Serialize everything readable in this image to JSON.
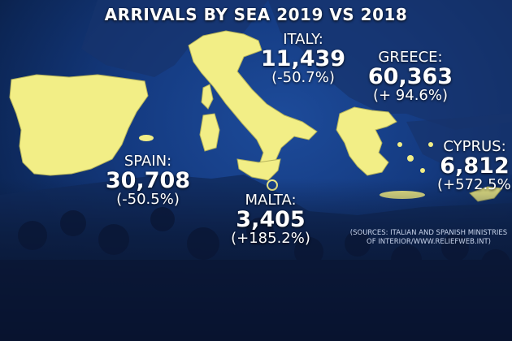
{
  "title": "ARRIVALS BY SEA 2019 VS 2018",
  "colors": {
    "land_highlight": "#f2ee86",
    "sea": "#1a4690",
    "text": "#ffffff"
  },
  "countries": {
    "italy": {
      "name": "ITALY:",
      "value": "11,439",
      "change": "(-50.7%)"
    },
    "greece": {
      "name": "GREECE:",
      "value": "60,363",
      "change": "(+ 94.6%)"
    },
    "spain": {
      "name": "SPAIN:",
      "value": "30,708",
      "change": "(-50.5%)"
    },
    "malta": {
      "name": "MALTA:",
      "value": "3,405",
      "change": "(+185.2%)"
    },
    "cyprus": {
      "name": "CYPRUS:",
      "value": "6,812",
      "change": "(+572.5%)"
    }
  },
  "source": {
    "line1": "(SOURCES: ITALIAN AND SPANISH MINISTRIES",
    "line2": "OF INTERIOR/WWW.RELIEFWEB.INT)"
  }
}
